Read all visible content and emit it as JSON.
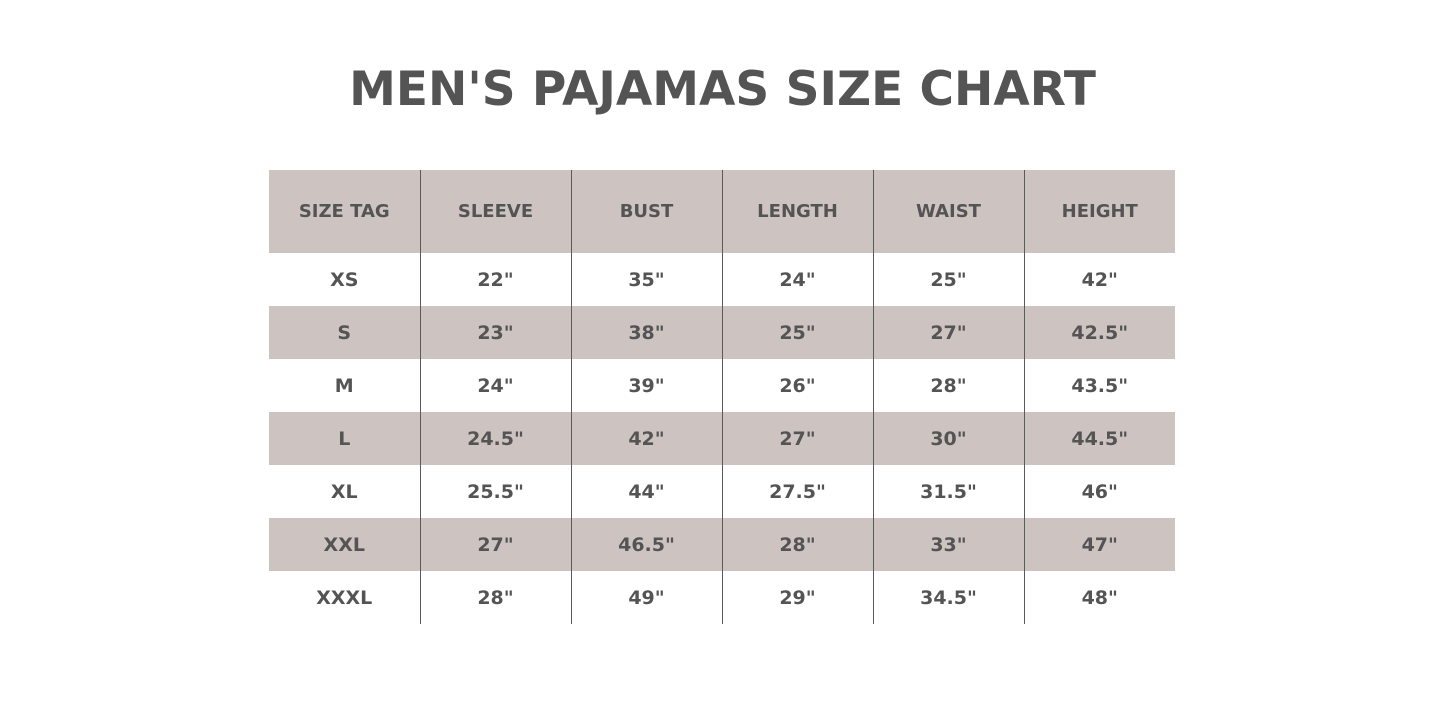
{
  "title": "MEN'S PAJAMAS SIZE CHART",
  "colors": {
    "shade": "#cdc3c1",
    "text": "#545454"
  },
  "table": {
    "headers": [
      "SIZE TAG",
      "SLEEVE",
      "BUST",
      "LENGTH",
      "WAIST",
      "HEIGHT"
    ],
    "rows": [
      [
        "XS",
        "22\"",
        "35\"",
        "24\"",
        "25\"",
        "42\""
      ],
      [
        "S",
        "23\"",
        "38\"",
        "25\"",
        "27\"",
        "42.5\""
      ],
      [
        "M",
        "24\"",
        "39\"",
        "26\"",
        "28\"",
        "43.5\""
      ],
      [
        "L",
        "24.5\"",
        "42\"",
        "27\"",
        "30\"",
        "44.5\""
      ],
      [
        "XL",
        "25.5\"",
        "44\"",
        "27.5\"",
        "31.5\"",
        "46\""
      ],
      [
        "XXL",
        "27\"",
        "46.5\"",
        "28\"",
        "33\"",
        "47\""
      ],
      [
        "XXXL",
        "28\"",
        "49\"",
        "29\"",
        "34.5\"",
        "48\""
      ]
    ]
  }
}
